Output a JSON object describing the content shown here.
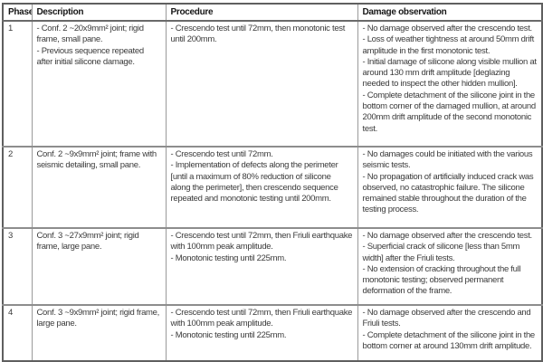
{
  "table": {
    "headers": [
      "Phase",
      "Description",
      "Procedure",
      "Damage observation"
    ],
    "rows": [
      {
        "phase": "1",
        "description": [
          "- Conf. 2 ~20x9mm² joint; rigid frame, small pane.",
          "- Previous sequence repeated after initial silicone damage."
        ],
        "procedure": [
          "- Crescendo test until 72mm, then monotonic test until 200mm."
        ],
        "damage": [
          "- No damage observed after the crescendo test.",
          "- Loss of weather tightness at around 50mm drift amplitude in the first monotonic test.",
          "- Initial damage of silicone along visible mullion at around 130 mm drift amplitude [deglazing needed to inspect the other hidden mullion].",
          "- Complete detachment of the silicone joint in the bottom corner of the damaged mullion, at around 200mm drift amplitude of the second monotonic test."
        ]
      },
      {
        "phase": "2",
        "description": [
          "Conf. 2 ~9x9mm² joint; frame with seismic detailing, small pane."
        ],
        "procedure": [
          "- Crescendo test until 72mm.",
          "- Implementation of defects along the perimeter [until a maximum of 80% reduction of silicone along the perimeter], then crescendo sequence repeated and monotonic testing until 200mm."
        ],
        "damage": [
          "- No damages could be initiated with the various seismic tests.",
          "- No propagation of artificially induced crack was observed, no catastrophic failure. The silicone remained stable throughout the duration of the testing process."
        ]
      },
      {
        "phase": "3",
        "description": [
          "Conf. 3 ~27x9mm² joint; rigid frame, large pane."
        ],
        "procedure": [
          "- Crescendo test until 72mm, then Friuli earthquake with 100mm peak amplitude.",
          "- Monotonic testing until 225mm."
        ],
        "damage": [
          "- No damage observed after the crescendo test.",
          "- Superficial crack of silicone [less than 5mm width] after the Friuli tests.",
          "- No extension of cracking throughout the full monotonic testing; observed permanent deformation of the frame."
        ]
      },
      {
        "phase": "4",
        "description": [
          "Conf. 3 ~9x9mm² joint; rigid frame, large pane."
        ],
        "procedure": [
          "- Crescendo test until 72mm, then Friuli earthquake with 100mm peak amplitude.",
          "- Monotonic testing until 225mm."
        ],
        "damage": [
          "- No damage observed after the crescendo and Friuli tests.",
          "- Complete detachment of the silicone joint in the bottom corner at around 130mm drift amplitude."
        ]
      }
    ]
  }
}
